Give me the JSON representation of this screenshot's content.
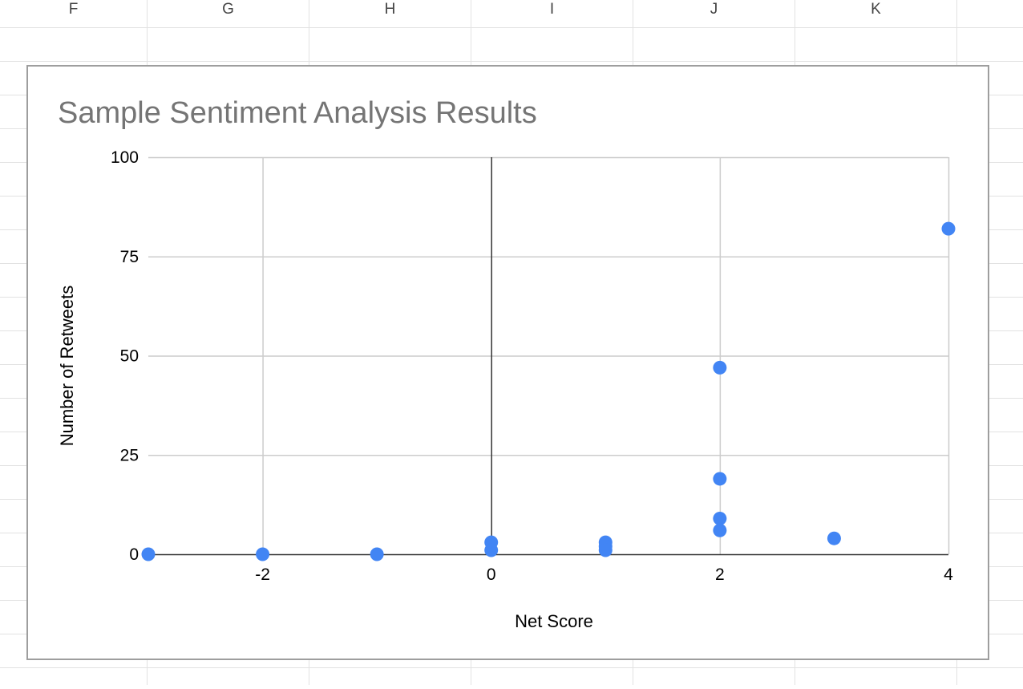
{
  "sheet": {
    "columns": [
      "F",
      "G",
      "H",
      "I",
      "J",
      "K"
    ]
  },
  "colors": {
    "marker": "#4285f4",
    "title": "#757575",
    "gridline": "#cccccc",
    "axis": "#333333",
    "sheet_grid": "#e2e2e2"
  },
  "chart_data": {
    "type": "scatter",
    "title": "Sample Sentiment Analysis Results",
    "xlabel": "Net Score",
    "ylabel": "Number of Retweets",
    "xlim": [
      -3,
      4
    ],
    "ylim": [
      0,
      100
    ],
    "x_ticks": [
      -2,
      0,
      2,
      4
    ],
    "y_ticks": [
      0,
      25,
      50,
      75,
      100
    ],
    "grid": true,
    "series": [
      {
        "points": [
          {
            "x": -3,
            "y": 0
          },
          {
            "x": -2,
            "y": 0
          },
          {
            "x": -1,
            "y": 0
          },
          {
            "x": 0,
            "y": 3
          },
          {
            "x": 0,
            "y": 1
          },
          {
            "x": 1,
            "y": 3
          },
          {
            "x": 1,
            "y": 2
          },
          {
            "x": 1,
            "y": 1
          },
          {
            "x": 2,
            "y": 47
          },
          {
            "x": 2,
            "y": 19
          },
          {
            "x": 2,
            "y": 9
          },
          {
            "x": 2,
            "y": 6
          },
          {
            "x": 3,
            "y": 4
          },
          {
            "x": 4,
            "y": 82
          }
        ]
      }
    ]
  }
}
